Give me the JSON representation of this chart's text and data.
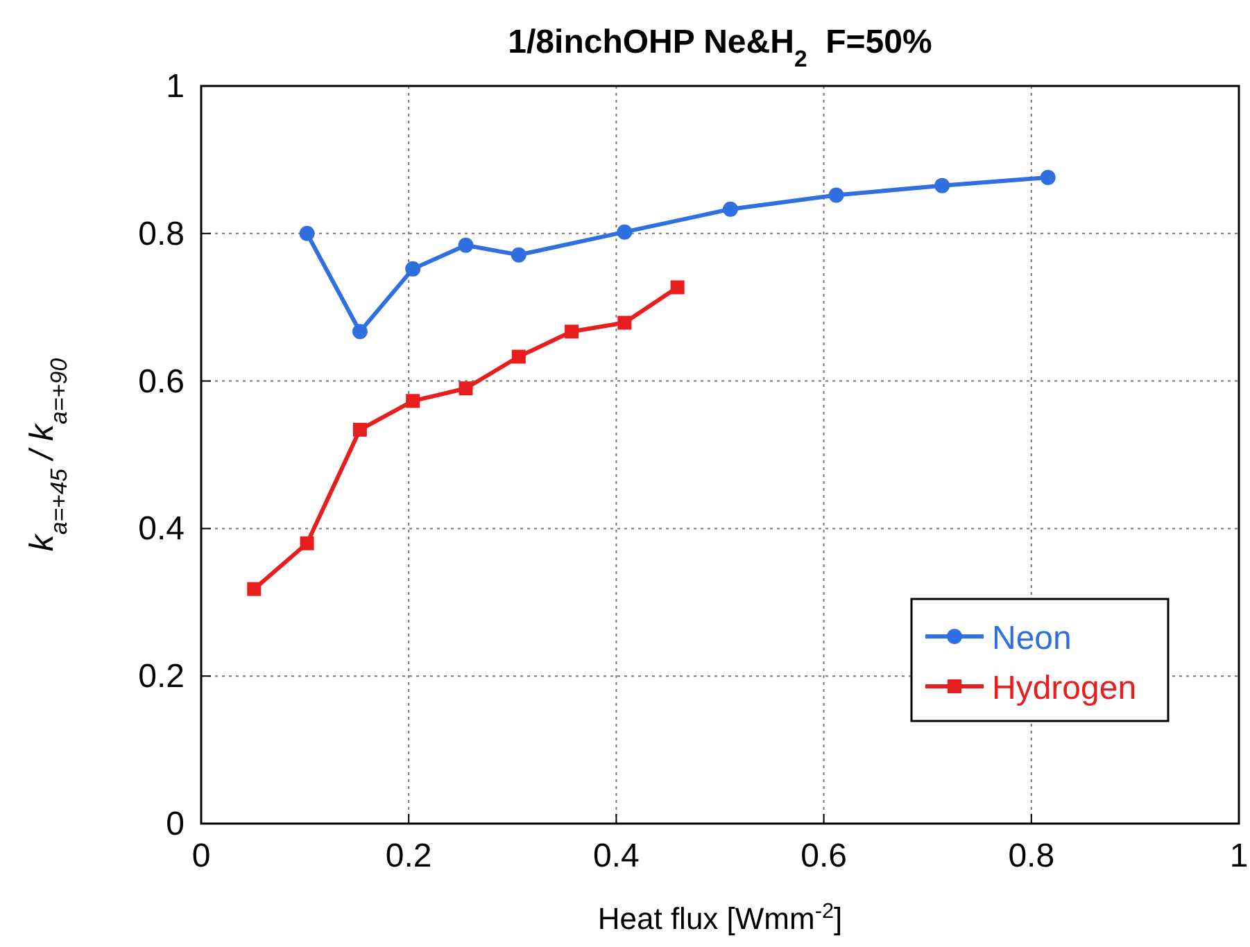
{
  "chart_data": {
    "type": "line",
    "title": "1/8inchOHP Ne&H$_{2}$  F=50%",
    "xlabel": "Heat flux [Wmm$^{-2}$]",
    "ylabel": "k$_{a=+45}$ / k$_{a=+90}$",
    "xlim": [
      0,
      1
    ],
    "xticks": [
      0,
      0.2,
      0.4,
      0.6,
      0.8,
      1
    ],
    "ylim": [
      0,
      1
    ],
    "yticks": [
      0,
      0.2,
      0.4,
      0.6,
      0.8,
      1
    ],
    "grid": true,
    "legend": "bottom right",
    "line_style": "solid",
    "series": [
      {
        "name": "Neon",
        "color": "#2f6fe0",
        "marker": "circle",
        "x": [
          0.102,
          0.153,
          0.204,
          0.255,
          0.306,
          0.408,
          0.51,
          0.612,
          0.714,
          0.816
        ],
        "values": [
          0.8,
          0.667,
          0.752,
          0.784,
          0.771,
          0.802,
          0.833,
          0.852,
          0.865,
          0.876
        ]
      },
      {
        "name": "Hydrogen",
        "color": "#e81e1e",
        "marker": "square",
        "x": [
          0.051,
          0.102,
          0.153,
          0.204,
          0.255,
          0.306,
          0.357,
          0.408,
          0.459
        ],
        "values": [
          0.318,
          0.38,
          0.534,
          0.573,
          0.59,
          0.633,
          0.667,
          0.679,
          0.727
        ]
      }
    ]
  }
}
